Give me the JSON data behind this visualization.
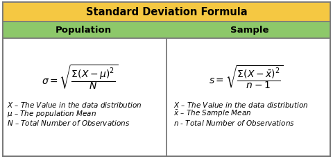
{
  "title": "Standard Deviation Formula",
  "title_bg": "#F5C842",
  "header_bg": "#8DC86A",
  "body_bg": "#FFFFFF",
  "border_color": "#7A7A7A",
  "title_fontsize": 10.5,
  "header_fontsize": 9.5,
  "formula_fontsize": 10,
  "legend_fontsize": 7.5,
  "col_headers": [
    "Population",
    "Sample"
  ],
  "pop_formula": "$\\sigma = \\sqrt{\\dfrac{\\Sigma(X - \\mu)^2}{N}}$",
  "samp_formula": "$s = \\sqrt{\\dfrac{\\Sigma(X - \\bar{x})^2}{n - 1}}$",
  "pop_legend": [
    "$X$ – The Value in the data distribution",
    "$\\mu$ – The population Mean",
    "$N$ – Total Number of Observations"
  ],
  "samp_legend": [
    "$X$ – The Value in the data distribution",
    "$\\bar{x}$ – The Sample Mean",
    "$n$ - Total Number of Observations"
  ]
}
